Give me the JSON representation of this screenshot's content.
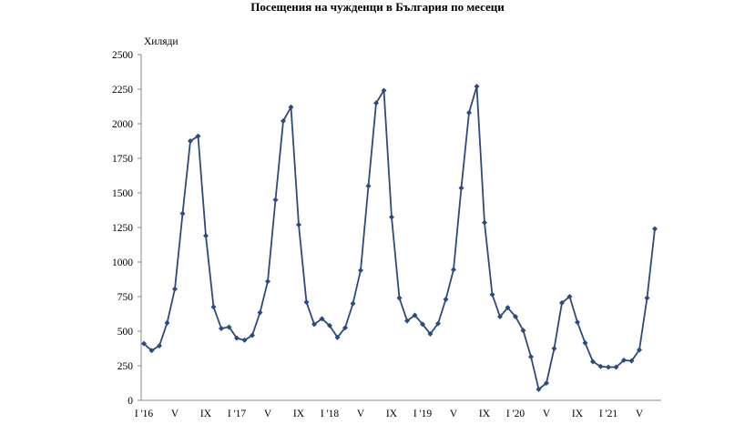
{
  "chart_data": {
    "type": "line",
    "title": "Посещения на чужденци в България по месеци",
    "ylabel": "Хиляди",
    "xlabel": "",
    "ylim": [
      0,
      2500
    ],
    "yticks": [
      0,
      250,
      500,
      750,
      1000,
      1250,
      1500,
      1750,
      2000,
      2250,
      2500
    ],
    "grid": false,
    "legend": "none",
    "colors": {
      "line": "#2e4a7d",
      "marker": "#2e4a7d"
    },
    "x_tick_labels": [
      {
        "index": 0,
        "label": "I '16"
      },
      {
        "index": 4,
        "label": "V"
      },
      {
        "index": 8,
        "label": "IX"
      },
      {
        "index": 12,
        "label": "I '17"
      },
      {
        "index": 16,
        "label": "V"
      },
      {
        "index": 20,
        "label": "IX"
      },
      {
        "index": 24,
        "label": "I '18"
      },
      {
        "index": 28,
        "label": "V"
      },
      {
        "index": 32,
        "label": "IX"
      },
      {
        "index": 36,
        "label": "I '19"
      },
      {
        "index": 40,
        "label": "V"
      },
      {
        "index": 44,
        "label": "IX"
      },
      {
        "index": 48,
        "label": "I '20"
      },
      {
        "index": 52,
        "label": "V"
      },
      {
        "index": 56,
        "label": "IX"
      },
      {
        "index": 60,
        "label": "I '21"
      },
      {
        "index": 64,
        "label": "V"
      }
    ],
    "values": [
      410,
      360,
      395,
      560,
      805,
      1350,
      1875,
      1910,
      1190,
      675,
      520,
      530,
      450,
      435,
      470,
      635,
      860,
      1450,
      2020,
      2120,
      1270,
      710,
      550,
      590,
      540,
      455,
      525,
      700,
      940,
      1550,
      2150,
      2240,
      1325,
      740,
      575,
      615,
      550,
      480,
      555,
      730,
      945,
      1535,
      2080,
      2270,
      1285,
      765,
      605,
      670,
      605,
      505,
      315,
      80,
      125,
      375,
      705,
      750,
      565,
      415,
      280,
      245,
      240,
      240,
      290,
      285,
      365,
      740,
      1240
    ]
  }
}
